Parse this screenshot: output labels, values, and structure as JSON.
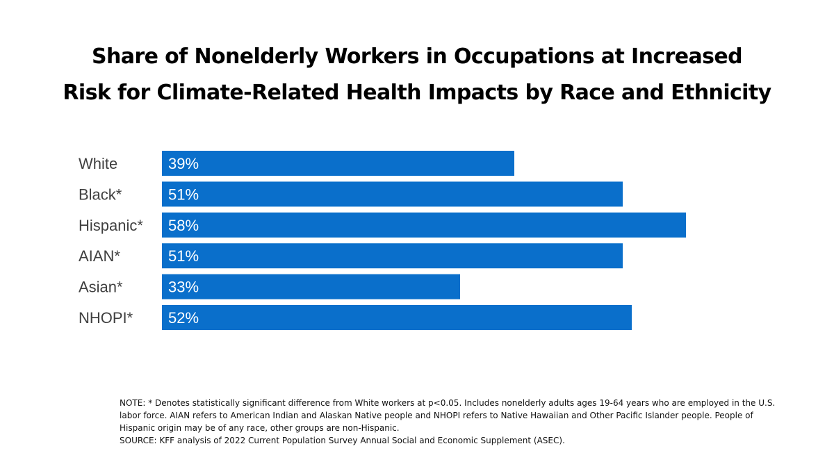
{
  "title": {
    "line1": "Share of Nonelderly Workers in Occupations at Increased",
    "line2": "Risk for Climate-Related Health Impacts by Race and Ethnicity"
  },
  "colors": {
    "bar": "#0a6fcb",
    "category_label": "#404040",
    "value_label": "#ffffff"
  },
  "chart_data": {
    "type": "bar",
    "orientation": "horizontal",
    "title": "Share of Nonelderly Workers in Occupations at Increased Risk for Climate-Related Health Impacts by Race and Ethnicity",
    "categories": [
      "White",
      "Black*",
      "Hispanic*",
      "AIAN*",
      "Asian*",
      "NHOPI*"
    ],
    "values": [
      39,
      51,
      58,
      51,
      33,
      52
    ],
    "value_labels": [
      "39%",
      "51%",
      "58%",
      "51%",
      "33%",
      "52%"
    ],
    "unit": "%",
    "xlabel": "",
    "ylabel": "",
    "xlim": [
      0,
      100
    ],
    "grid": false,
    "legend": "none"
  },
  "footnote": {
    "note": "NOTE: * Denotes statistically significant difference from White workers at p<0.05. Includes nonelderly adults ages 19-64 years who are employed in the U.S. labor force. AIAN refers to American Indian and Alaskan Native people and NHOPI refers to Native Hawaiian and Other Pacific Islander people. People of Hispanic origin may be of any race, other groups are non-Hispanic.",
    "source": "SOURCE: KFF analysis of 2022 Current Population Survey Annual Social and Economic Supplement (ASEC)."
  }
}
